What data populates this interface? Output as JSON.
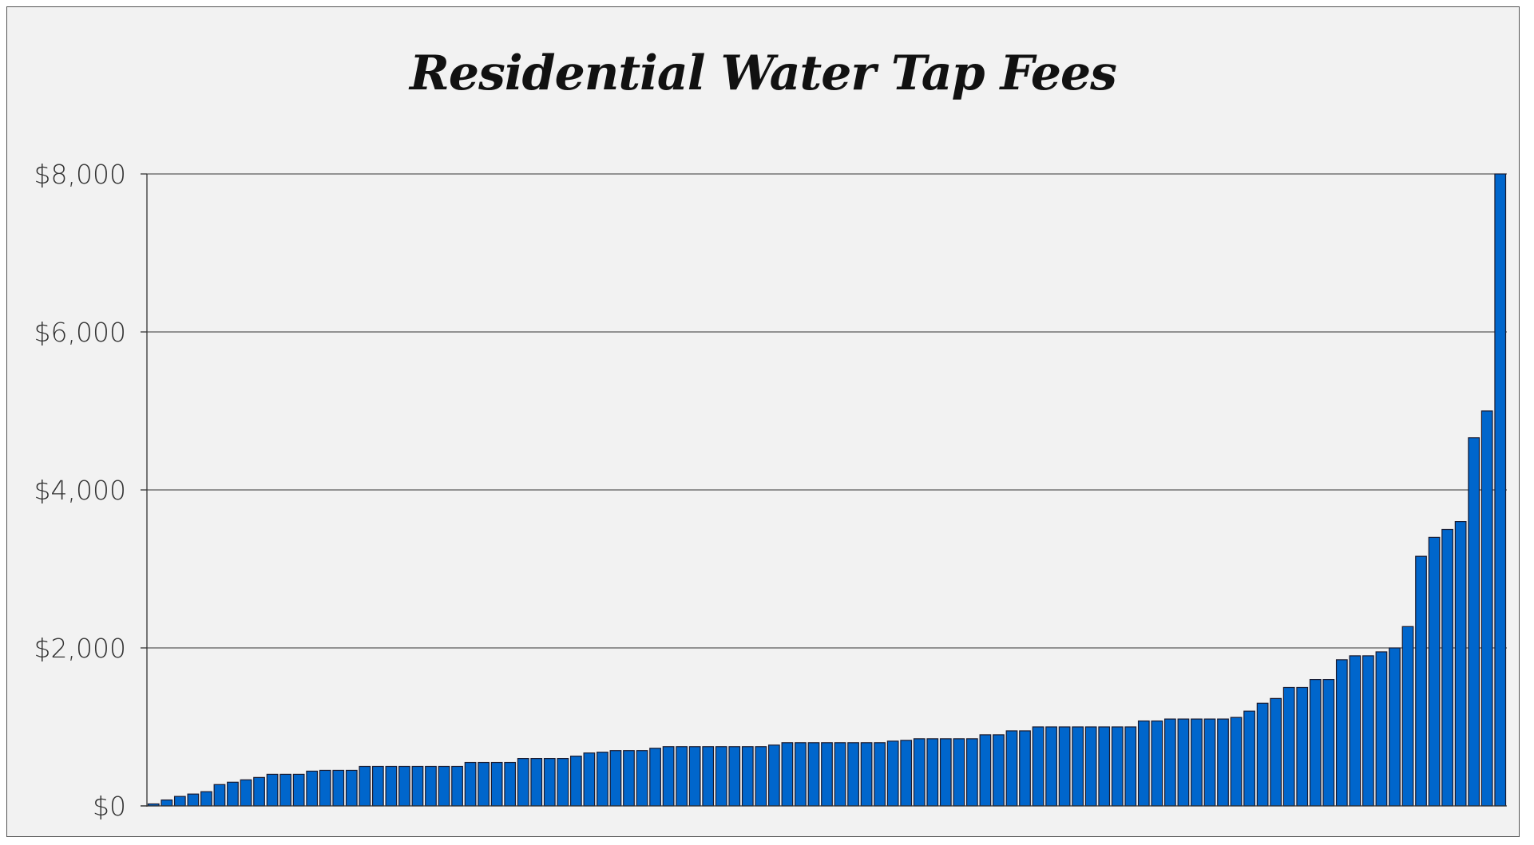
{
  "chart_data": {
    "type": "bar",
    "title": "Residential Water Tap Fees",
    "xlabel": "",
    "ylabel": "",
    "ylim": [
      0,
      8000
    ],
    "yticks": [
      0,
      2000,
      4000,
      6000,
      8000
    ],
    "ytick_labels": [
      "$0",
      "$2,000",
      "$4,000",
      "$6,000",
      "$8,000"
    ],
    "grid": "horizontal",
    "bar_color": "#0066cc",
    "bar_edge_color": "#1a1a2e",
    "values": [
      25,
      75,
      120,
      150,
      180,
      270,
      300,
      330,
      360,
      400,
      400,
      400,
      440,
      450,
      450,
      450,
      500,
      500,
      500,
      500,
      500,
      500,
      500,
      500,
      550,
      550,
      550,
      550,
      600,
      600,
      600,
      600,
      630,
      670,
      680,
      700,
      700,
      700,
      730,
      750,
      750,
      750,
      750,
      750,
      750,
      750,
      750,
      770,
      800,
      800,
      800,
      800,
      800,
      800,
      800,
      800,
      820,
      830,
      850,
      850,
      850,
      850,
      850,
      900,
      900,
      950,
      950,
      1000,
      1000,
      1000,
      1000,
      1000,
      1000,
      1000,
      1000,
      1075,
      1075,
      1100,
      1100,
      1100,
      1100,
      1100,
      1120,
      1200,
      1300,
      1360,
      1500,
      1500,
      1600,
      1600,
      1850,
      1900,
      1900,
      1950,
      2000,
      2270,
      3160,
      3400,
      3500,
      3600,
      4660,
      5000,
      8000
    ]
  }
}
